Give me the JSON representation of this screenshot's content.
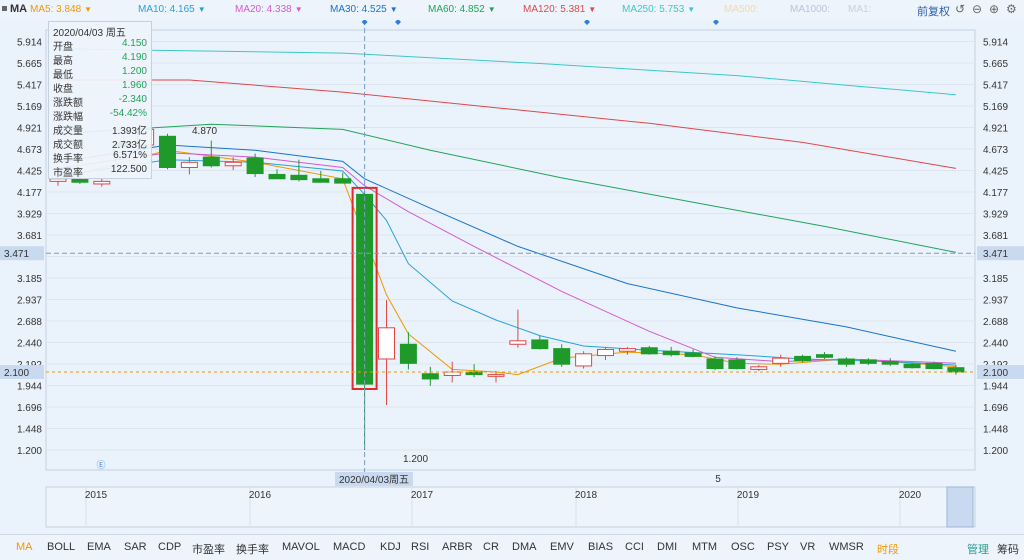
{
  "header": {
    "symbol": "MA",
    "ma_items": [
      {
        "label": "MA5: 3.848",
        "color": "#f39800"
      },
      {
        "label": "MA10: 4.165",
        "color": "#25a3d8"
      },
      {
        "label": "MA20: 4.338",
        "color": "#d45ad1"
      },
      {
        "label": "MA30: 4.525",
        "color": "#1874cd"
      },
      {
        "label": "MA60: 4.852",
        "color": "#21a35a"
      },
      {
        "label": "MA120: 5.381",
        "color": "#e04848"
      },
      {
        "label": "MA250: 5.753",
        "color": "#3cc8c8"
      },
      {
        "label": "MA500:",
        "color": "#f5d9a6"
      },
      {
        "label": "MA1000:",
        "color": "#b8c4d8"
      },
      {
        "label": "MA1:",
        "color": "#c8d0dc"
      }
    ],
    "adjust_label": "前复权",
    "icons": [
      "undo-icon",
      "minus-circle-icon",
      "plus-circle-icon",
      "settings-icon"
    ]
  },
  "info_panel": {
    "date": "2020/04/03 周五",
    "rows": [
      {
        "k": "开盘",
        "v": "4.150",
        "color": "#21a35a"
      },
      {
        "k": "最高",
        "v": "4.190",
        "color": "#21a35a"
      },
      {
        "k": "最低",
        "v": "1.200",
        "color": "#21a35a"
      },
      {
        "k": "收盘",
        "v": "1.960",
        "color": "#21a35a"
      },
      {
        "k": "涨跌额",
        "v": "-2.340",
        "color": "#21a35a"
      },
      {
        "k": "涨跌幅",
        "v": "-54.42%",
        "color": "#21a35a"
      },
      {
        "k": "成交量",
        "v": "1.393亿",
        "color": "#333333"
      },
      {
        "k": "成交额",
        "v": "2.733亿",
        "color": "#333333"
      },
      {
        "k": "换手率",
        "v": "6.571%",
        "color": "#333333"
      },
      {
        "k": "市盈率",
        "v": "122.500",
        "color": "#333333"
      }
    ]
  },
  "chart_data": {
    "type": "candlestick",
    "y_ticks": [
      "5.914",
      "5.665",
      "5.417",
      "5.169",
      "4.921",
      "4.673",
      "4.425",
      "4.177",
      "3.929",
      "3.681",
      "3.433",
      "3.185",
      "2.937",
      "2.688",
      "2.440",
      "2.192",
      "1.944",
      "1.696",
      "1.448",
      "1.200"
    ],
    "ylim": [
      1.2,
      5.914
    ],
    "crosshair_price": "3.471",
    "crosshair_price_value": 3.471,
    "last_price": "2.100",
    "last_price_value": 2.1,
    "annotations": [
      {
        "text": "4.870",
        "value": 4.87
      },
      {
        "text": "1.200",
        "value": 1.2
      }
    ],
    "crosshair_date": "2020/04/03周五",
    "x_labels": [
      "2015",
      "2016",
      "2017",
      "2018",
      "2019",
      "2020"
    ],
    "marker_text": "5",
    "candles": [
      {
        "o": 4.3,
        "h": 4.36,
        "l": 4.25,
        "c": 4.33
      },
      {
        "o": 4.33,
        "h": 4.38,
        "l": 4.27,
        "c": 4.29
      },
      {
        "o": 4.27,
        "h": 4.34,
        "l": 4.24,
        "c": 4.3
      },
      {
        "o": 4.75,
        "h": 4.8,
        "l": 4.7,
        "c": 4.7
      },
      {
        "o": 4.72,
        "h": 4.92,
        "l": 4.72,
        "c": 4.9
      },
      {
        "o": 4.82,
        "h": 4.85,
        "l": 4.44,
        "c": 4.46
      },
      {
        "o": 4.46,
        "h": 4.58,
        "l": 4.38,
        "c": 4.52
      },
      {
        "o": 4.58,
        "h": 4.77,
        "l": 4.46,
        "c": 4.48
      },
      {
        "o": 4.48,
        "h": 4.58,
        "l": 4.43,
        "c": 4.52
      },
      {
        "o": 4.57,
        "h": 4.62,
        "l": 4.35,
        "c": 4.39
      },
      {
        "o": 4.38,
        "h": 4.44,
        "l": 4.33,
        "c": 4.33
      },
      {
        "o": 4.37,
        "h": 4.55,
        "l": 4.3,
        "c": 4.32
      },
      {
        "o": 4.33,
        "h": 4.42,
        "l": 4.29,
        "c": 4.29
      },
      {
        "o": 4.33,
        "h": 4.4,
        "l": 4.28,
        "c": 4.28
      },
      {
        "o": 4.15,
        "h": 4.19,
        "l": 1.2,
        "c": 1.96
      },
      {
        "o": 2.25,
        "h": 2.93,
        "l": 1.72,
        "c": 2.61
      },
      {
        "o": 2.42,
        "h": 2.56,
        "l": 2.13,
        "c": 2.2
      },
      {
        "o": 2.08,
        "h": 2.16,
        "l": 1.94,
        "c": 2.02
      },
      {
        "o": 2.06,
        "h": 2.22,
        "l": 1.98,
        "c": 2.1
      },
      {
        "o": 2.1,
        "h": 2.19,
        "l": 2.04,
        "c": 2.07
      },
      {
        "o": 2.05,
        "h": 2.11,
        "l": 1.98,
        "c": 2.07
      },
      {
        "o": 2.42,
        "h": 2.82,
        "l": 2.38,
        "c": 2.46
      },
      {
        "o": 2.47,
        "h": 2.52,
        "l": 2.36,
        "c": 2.37
      },
      {
        "o": 2.37,
        "h": 2.42,
        "l": 2.16,
        "c": 2.19
      },
      {
        "o": 2.17,
        "h": 2.34,
        "l": 2.14,
        "c": 2.31
      },
      {
        "o": 2.29,
        "h": 2.38,
        "l": 2.24,
        "c": 2.36
      },
      {
        "o": 2.34,
        "h": 2.39,
        "l": 2.3,
        "c": 2.37
      },
      {
        "o": 2.38,
        "h": 2.4,
        "l": 2.3,
        "c": 2.31
      },
      {
        "o": 2.34,
        "h": 2.39,
        "l": 2.28,
        "c": 2.3
      },
      {
        "o": 2.32,
        "h": 2.36,
        "l": 2.27,
        "c": 2.28
      },
      {
        "o": 2.25,
        "h": 2.28,
        "l": 2.12,
        "c": 2.14
      },
      {
        "o": 2.24,
        "h": 2.27,
        "l": 2.13,
        "c": 2.14
      },
      {
        "o": 2.13,
        "h": 2.18,
        "l": 2.11,
        "c": 2.16
      },
      {
        "o": 2.2,
        "h": 2.3,
        "l": 2.16,
        "c": 2.26
      },
      {
        "o": 2.28,
        "h": 2.3,
        "l": 2.21,
        "c": 2.23
      },
      {
        "o": 2.3,
        "h": 2.33,
        "l": 2.25,
        "c": 2.27
      },
      {
        "o": 2.25,
        "h": 2.27,
        "l": 2.16,
        "c": 2.19
      },
      {
        "o": 2.24,
        "h": 2.26,
        "l": 2.18,
        "c": 2.2
      },
      {
        "o": 2.22,
        "h": 2.26,
        "l": 2.17,
        "c": 2.19
      },
      {
        "o": 2.19,
        "h": 2.21,
        "l": 2.14,
        "c": 2.15
      },
      {
        "o": 2.2,
        "h": 2.22,
        "l": 2.13,
        "c": 2.14
      },
      {
        "o": 2.15,
        "h": 2.18,
        "l": 2.07,
        "c": 2.1
      }
    ],
    "highlight_index": 14,
    "ma_lines": [
      {
        "name": "MA5",
        "color": "#f39800",
        "points": [
          [
            0,
            4.32
          ],
          [
            5,
            4.66
          ],
          [
            9,
            4.52
          ],
          [
            13,
            4.33
          ],
          [
            15,
            2.99
          ],
          [
            16,
            2.54
          ],
          [
            18,
            2.13
          ],
          [
            20,
            2.1
          ],
          [
            21,
            2.07
          ],
          [
            23,
            2.26
          ],
          [
            26,
            2.33
          ],
          [
            29,
            2.3
          ],
          [
            31,
            2.2
          ],
          [
            33,
            2.19
          ],
          [
            36,
            2.25
          ],
          [
            39,
            2.2
          ],
          [
            41,
            2.16
          ]
        ]
      },
      {
        "name": "MA10",
        "color": "#25a3d8",
        "points": [
          [
            0,
            4.36
          ],
          [
            5,
            4.55
          ],
          [
            9,
            4.52
          ],
          [
            13,
            4.42
          ],
          [
            14,
            4.15
          ],
          [
            15,
            3.85
          ],
          [
            16,
            3.35
          ],
          [
            18,
            2.92
          ],
          [
            20,
            2.7
          ],
          [
            22,
            2.52
          ],
          [
            24,
            2.4
          ],
          [
            27,
            2.35
          ],
          [
            31,
            2.3
          ],
          [
            34,
            2.25
          ],
          [
            38,
            2.22
          ],
          [
            41,
            2.18
          ]
        ]
      },
      {
        "name": "MA20",
        "color": "#d45ad1",
        "points": [
          [
            0,
            4.45
          ],
          [
            5,
            4.63
          ],
          [
            9,
            4.58
          ],
          [
            13,
            4.46
          ],
          [
            14,
            4.25
          ],
          [
            16,
            3.95
          ],
          [
            19,
            3.55
          ],
          [
            23,
            3.03
          ],
          [
            27,
            2.57
          ],
          [
            30,
            2.27
          ],
          [
            33,
            2.22
          ],
          [
            36,
            2.25
          ],
          [
            41,
            2.2
          ]
        ]
      },
      {
        "name": "MA30",
        "color": "#1874cd",
        "points": [
          [
            0,
            4.52
          ],
          [
            5,
            4.72
          ],
          [
            9,
            4.66
          ],
          [
            13,
            4.53
          ],
          [
            14,
            4.33
          ],
          [
            17,
            3.99
          ],
          [
            21,
            3.55
          ],
          [
            26,
            3.12
          ],
          [
            31,
            2.84
          ],
          [
            36,
            2.62
          ],
          [
            41,
            2.34
          ]
        ]
      },
      {
        "name": "MA60",
        "color": "#21a35a",
        "points": [
          [
            0,
            4.85
          ],
          [
            7,
            4.96
          ],
          [
            13,
            4.9
          ],
          [
            17,
            4.66
          ],
          [
            23,
            4.34
          ],
          [
            29,
            4.06
          ],
          [
            35,
            3.78
          ],
          [
            41,
            3.48
          ]
        ]
      },
      {
        "name": "MA120",
        "color": "#e04848",
        "points": [
          [
            0,
            5.47
          ],
          [
            6,
            5.47
          ],
          [
            13,
            5.33
          ],
          [
            20,
            5.15
          ],
          [
            27,
            4.97
          ],
          [
            34,
            4.75
          ],
          [
            41,
            4.45
          ]
        ]
      },
      {
        "name": "MA250",
        "color": "#3cc8c8",
        "points": [
          [
            0,
            5.83
          ],
          [
            13,
            5.78
          ],
          [
            22,
            5.66
          ],
          [
            31,
            5.52
          ],
          [
            36,
            5.41
          ],
          [
            41,
            5.3
          ]
        ]
      }
    ]
  },
  "bottom_tabs": [
    "MA",
    "BOLL",
    "EMA",
    "SAR",
    "CDP",
    "市盈率",
    "换手率",
    "MAVOL",
    "MACD",
    "KDJ",
    "RSI",
    "ARBR",
    "CR",
    "DMA",
    "EMV",
    "BIAS",
    "CCI",
    "DMI",
    "MTM",
    "OSC",
    "PSY",
    "VR",
    "WMSR"
  ],
  "bottom_right": [
    "时段",
    "管理",
    "筹码"
  ]
}
